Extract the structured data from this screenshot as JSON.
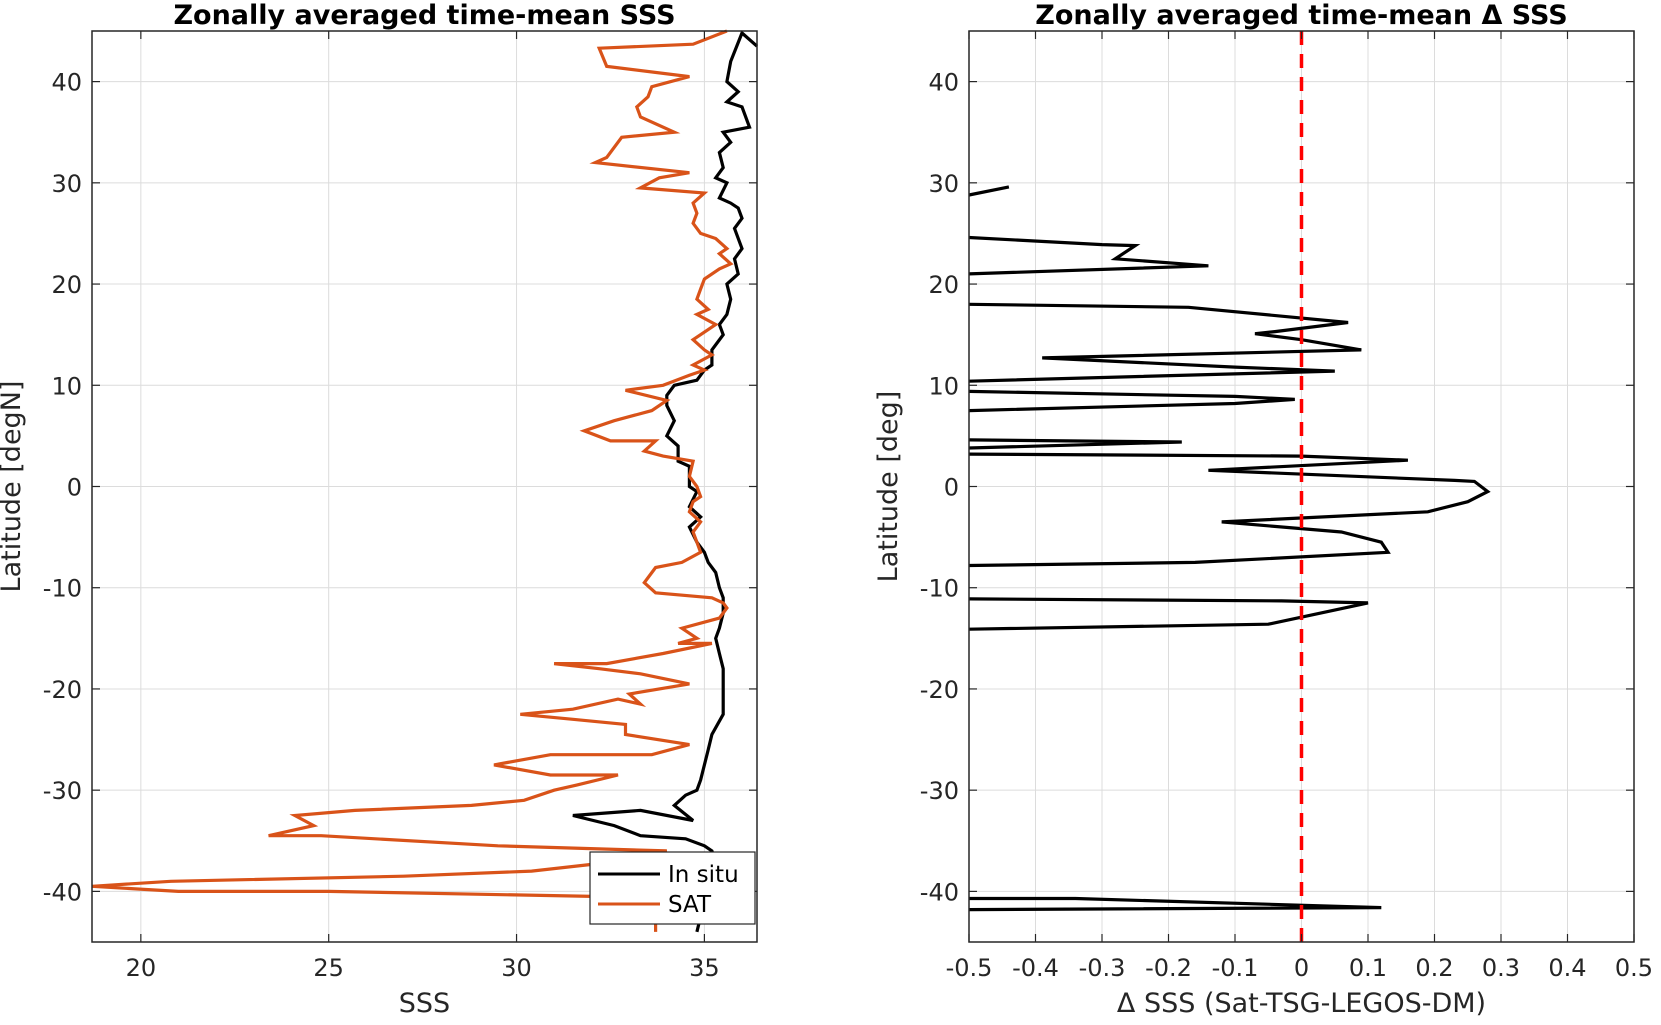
{
  "chart_data": [
    {
      "type": "line",
      "title": "Zonally averaged time-mean SSS",
      "xlabel": "SSS",
      "ylabel": "Latitude [degN]",
      "xlim": [
        18.7,
        36.4
      ],
      "ylim": [
        -45,
        45
      ],
      "xticks": [
        20,
        25,
        30,
        35
      ],
      "yticks": [
        -40,
        -30,
        -20,
        -10,
        0,
        10,
        20,
        30,
        40
      ],
      "grid": true,
      "legend_position": "bottom-right",
      "series": [
        {
          "name": "In situ",
          "color": "#000000",
          "points": [
            [
              36.4,
              43.5
            ],
            [
              36.0,
              44.8
            ],
            [
              35.7,
              42.0
            ],
            [
              35.6,
              40.0
            ],
            [
              35.9,
              39.0
            ],
            [
              35.6,
              38.0
            ],
            [
              36.0,
              37.5
            ],
            [
              36.2,
              35.5
            ],
            [
              35.5,
              35.0
            ],
            [
              35.7,
              34.0
            ],
            [
              35.4,
              33.0
            ],
            [
              35.5,
              31.5
            ],
            [
              35.3,
              30.5
            ],
            [
              35.6,
              30.0
            ],
            [
              35.4,
              28.5
            ],
            [
              35.7,
              28.0
            ],
            [
              35.9,
              27.5
            ],
            [
              36.0,
              26.5
            ],
            [
              35.8,
              25.5
            ],
            [
              36.0,
              23.5
            ],
            [
              35.8,
              22.5
            ],
            [
              35.9,
              21.0
            ],
            [
              35.6,
              20.0
            ],
            [
              35.7,
              18.5
            ],
            [
              35.6,
              17.0
            ],
            [
              35.4,
              16.0
            ],
            [
              35.5,
              15.0
            ],
            [
              35.2,
              13.5
            ],
            [
              35.2,
              12.0
            ],
            [
              35.0,
              11.5
            ],
            [
              34.8,
              10.5
            ],
            [
              34.2,
              10.0
            ],
            [
              34.0,
              9.0
            ],
            [
              34.0,
              8.0
            ],
            [
              34.2,
              6.5
            ],
            [
              34.0,
              5.0
            ],
            [
              34.3,
              4.0
            ],
            [
              34.3,
              2.5
            ],
            [
              34.6,
              2.0
            ],
            [
              34.6,
              0.0
            ],
            [
              34.8,
              -0.5
            ],
            [
              34.6,
              -2.0
            ],
            [
              34.9,
              -3.0
            ],
            [
              34.6,
              -4.0
            ],
            [
              34.8,
              -5.5
            ],
            [
              35.0,
              -6.5
            ],
            [
              35.1,
              -7.5
            ],
            [
              35.3,
              -8.5
            ],
            [
              35.4,
              -10.0
            ],
            [
              35.5,
              -11.0
            ],
            [
              35.5,
              -12.5
            ],
            [
              35.4,
              -14.0
            ],
            [
              35.3,
              -15.0
            ],
            [
              35.4,
              -16.5
            ],
            [
              35.5,
              -18.0
            ],
            [
              35.5,
              -19.5
            ],
            [
              35.5,
              -21.0
            ],
            [
              35.5,
              -22.5
            ],
            [
              35.2,
              -24.5
            ],
            [
              35.1,
              -26.0
            ],
            [
              35.0,
              -27.5
            ],
            [
              34.9,
              -29.0
            ],
            [
              34.8,
              -30.0
            ],
            [
              34.5,
              -30.5
            ],
            [
              34.2,
              -31.5
            ],
            [
              34.7,
              -33.0
            ],
            [
              33.3,
              -32.0
            ],
            [
              31.5,
              -32.5
            ],
            [
              32.6,
              -33.5
            ],
            [
              33.3,
              -34.5
            ],
            [
              34.5,
              -34.8
            ],
            [
              35.0,
              -35.5
            ],
            [
              35.2,
              -36.0
            ],
            [
              35.3,
              -37.0
            ],
            [
              35.4,
              -38.5
            ],
            [
              35.0,
              -39.5
            ],
            [
              35.0,
              -41.0
            ],
            [
              34.9,
              -42.5
            ],
            [
              34.8,
              -44.0
            ]
          ]
        },
        {
          "name": "SAT",
          "color": "#d95319",
          "points": [
            [
              35.6,
              45.0
            ],
            [
              34.7,
              43.7
            ],
            [
              32.2,
              43.3
            ],
            [
              32.4,
              41.5
            ],
            [
              34.6,
              40.5
            ],
            [
              33.6,
              39.5
            ],
            [
              33.5,
              38.5
            ],
            [
              33.2,
              37.5
            ],
            [
              33.3,
              36.5
            ],
            [
              34.2,
              35.0
            ],
            [
              32.8,
              34.5
            ],
            [
              32.4,
              32.5
            ],
            [
              32.1,
              32.0
            ],
            [
              34.6,
              31.0
            ],
            [
              33.8,
              30.5
            ],
            [
              33.3,
              29.5
            ],
            [
              35.0,
              29.0
            ],
            [
              34.7,
              28.0
            ],
            [
              34.8,
              27.0
            ],
            [
              34.7,
              26.0
            ],
            [
              34.9,
              25.0
            ],
            [
              35.3,
              24.5
            ],
            [
              35.6,
              23.5
            ],
            [
              35.4,
              23.0
            ],
            [
              35.7,
              22.0
            ],
            [
              35.4,
              21.5
            ],
            [
              35.0,
              20.5
            ],
            [
              34.9,
              19.5
            ],
            [
              34.8,
              18.5
            ],
            [
              35.1,
              17.5
            ],
            [
              34.8,
              17.0
            ],
            [
              35.3,
              16.0
            ],
            [
              35.1,
              15.5
            ],
            [
              34.7,
              14.5
            ],
            [
              35.0,
              13.5
            ],
            [
              35.2,
              13.0
            ],
            [
              34.7,
              12.0
            ],
            [
              35.0,
              11.5
            ],
            [
              34.6,
              11.0
            ],
            [
              33.9,
              10.0
            ],
            [
              32.9,
              9.5
            ],
            [
              34.0,
              8.5
            ],
            [
              33.6,
              7.5
            ],
            [
              32.6,
              6.5
            ],
            [
              31.8,
              5.5
            ],
            [
              32.5,
              4.5
            ],
            [
              33.7,
              4.5
            ],
            [
              33.4,
              3.5
            ],
            [
              33.9,
              3.0
            ],
            [
              34.7,
              2.5
            ],
            [
              34.6,
              1.0
            ],
            [
              34.8,
              0.0
            ],
            [
              34.9,
              -1.0
            ],
            [
              34.7,
              -1.5
            ],
            [
              34.6,
              -2.5
            ],
            [
              34.9,
              -3.5
            ],
            [
              34.7,
              -4.5
            ],
            [
              34.8,
              -5.5
            ],
            [
              34.9,
              -6.5
            ],
            [
              34.4,
              -7.5
            ],
            [
              33.7,
              -8.0
            ],
            [
              33.4,
              -9.5
            ],
            [
              33.7,
              -10.5
            ],
            [
              35.2,
              -11.0
            ],
            [
              35.5,
              -11.5
            ],
            [
              35.6,
              -12.0
            ],
            [
              35.4,
              -13.0
            ],
            [
              34.4,
              -14.0
            ],
            [
              34.8,
              -15.0
            ],
            [
              34.3,
              -15.5
            ],
            [
              35.2,
              -15.5
            ],
            [
              33.9,
              -16.5
            ],
            [
              32.4,
              -17.5
            ],
            [
              31.0,
              -17.5
            ],
            [
              32.2,
              -18.0
            ],
            [
              33.3,
              -18.5
            ],
            [
              34.6,
              -19.5
            ],
            [
              33.0,
              -20.5
            ],
            [
              33.3,
              -21.5
            ],
            [
              32.7,
              -21.0
            ],
            [
              31.5,
              -22.0
            ],
            [
              30.1,
              -22.5
            ],
            [
              31.5,
              -23.0
            ],
            [
              32.9,
              -23.5
            ],
            [
              32.9,
              -24.5
            ],
            [
              34.6,
              -25.5
            ],
            [
              33.6,
              -26.5
            ],
            [
              30.9,
              -26.5
            ],
            [
              29.4,
              -27.5
            ],
            [
              30.9,
              -28.5
            ],
            [
              32.7,
              -28.5
            ],
            [
              31.6,
              -29.5
            ],
            [
              31.0,
              -30.0
            ],
            [
              30.2,
              -31.0
            ],
            [
              28.8,
              -31.5
            ],
            [
              25.7,
              -32.0
            ],
            [
              24.1,
              -32.5
            ],
            [
              24.6,
              -33.5
            ],
            [
              23.4,
              -34.5
            ],
            [
              24.8,
              -34.5
            ],
            [
              29.5,
              -35.5
            ],
            [
              34.0,
              -36.0
            ],
            [
              32.8,
              -37.0
            ],
            [
              30.4,
              -38.0
            ],
            [
              27.0,
              -38.5
            ],
            [
              20.8,
              -39.0
            ],
            [
              18.7,
              -39.5
            ],
            [
              21.0,
              -40.0
            ],
            [
              25.0,
              -40.0
            ],
            [
              32.2,
              -40.5
            ],
            [
              33.6,
              -41.5
            ],
            [
              33.7,
              -43.0
            ],
            [
              33.7,
              -44.0
            ]
          ]
        }
      ]
    },
    {
      "type": "line",
      "title": "Zonally averaged time-mean Δ SSS",
      "xlabel": "Δ SSS (Sat-TSG-LEGOS-DM)",
      "ylabel": "Latitude [deg]",
      "xlim": [
        -0.5,
        0.5
      ],
      "ylim": [
        -45,
        45
      ],
      "xticks": [
        -0.5,
        -0.4,
        -0.3,
        -0.2,
        -0.1,
        0,
        0.1,
        0.2,
        0.3,
        0.4,
        0.5
      ],
      "yticks": [
        -40,
        -30,
        -20,
        -10,
        0,
        10,
        20,
        30,
        40
      ],
      "grid": true,
      "reference_line": {
        "x": 0,
        "color": "#ff0000",
        "style": "dashed"
      },
      "series": [
        {
          "color": "#000000",
          "segments": [
            [
              [
                -0.5,
                28.8
              ],
              [
                -0.44,
                29.6
              ]
            ],
            [
              [
                -0.5,
                24.6
              ],
              [
                -0.3,
                23.9
              ],
              [
                -0.25,
                23.8
              ],
              [
                -0.28,
                22.5
              ],
              [
                -0.14,
                21.8
              ],
              [
                -0.5,
                21.0
              ]
            ],
            [
              [
                -0.5,
                18.0
              ],
              [
                -0.17,
                17.7
              ],
              [
                0.07,
                16.2
              ],
              [
                -0.04,
                15.3
              ],
              [
                -0.07,
                15.1
              ],
              [
                0.0,
                14.5
              ],
              [
                0.09,
                13.5
              ],
              [
                -0.39,
                12.7
              ],
              [
                -0.1,
                11.8
              ],
              [
                0.05,
                11.4
              ],
              [
                -0.5,
                10.4
              ]
            ],
            [
              [
                -0.5,
                9.4
              ],
              [
                -0.1,
                8.9
              ],
              [
                -0.01,
                8.6
              ],
              [
                -0.1,
                8.2
              ],
              [
                -0.5,
                7.5
              ]
            ],
            [
              [
                -0.5,
                4.6
              ],
              [
                -0.18,
                4.4
              ],
              [
                -0.5,
                3.8
              ]
            ],
            [
              [
                -0.5,
                3.2
              ],
              [
                0.0,
                3.0
              ],
              [
                0.16,
                2.6
              ],
              [
                -0.14,
                1.6
              ],
              [
                0.23,
                0.6
              ],
              [
                0.26,
                0.5
              ],
              [
                0.28,
                -0.5
              ],
              [
                0.25,
                -1.5
              ],
              [
                0.19,
                -2.5
              ],
              [
                -0.12,
                -3.5
              ],
              [
                0.06,
                -4.5
              ],
              [
                0.12,
                -5.5
              ],
              [
                0.13,
                -6.5
              ],
              [
                -0.16,
                -7.5
              ],
              [
                -0.5,
                -7.8
              ]
            ],
            [
              [
                -0.5,
                -11.1
              ],
              [
                -0.03,
                -11.3
              ],
              [
                0.1,
                -11.5
              ],
              [
                -0.05,
                -13.6
              ],
              [
                -0.5,
                -14.1
              ]
            ],
            [
              [
                -0.5,
                -40.7
              ],
              [
                -0.34,
                -40.7
              ],
              [
                0.12,
                -41.6
              ],
              [
                -0.5,
                -41.8
              ]
            ]
          ]
        }
      ]
    }
  ]
}
